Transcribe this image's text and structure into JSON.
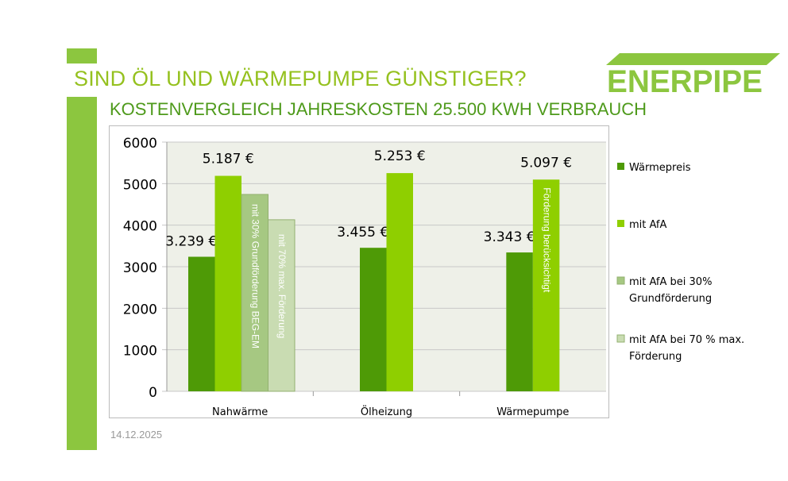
{
  "header": {
    "title": "SIND ÖL UND WÄRMEPUMPE GÜNSTIGER?",
    "subtitle": "KOSTENVERGLEICH JAHRESKOSTEN 25.500 KWH VERBRAUCH",
    "logo_text": "ENERPIPE"
  },
  "footer": {
    "date": "14.12.2025"
  },
  "colors": {
    "accent": "#8cc63f",
    "s1": "#4e9a06",
    "s2": "#8fcf00",
    "s3": "#a6c882",
    "s4": "#c9dcb2",
    "plot_bg": "#eef0e8"
  },
  "chart_data": {
    "type": "bar",
    "categories": [
      "Nahwärme",
      "Ölheizung",
      "Wärmepumpe"
    ],
    "ylim": [
      0,
      6000
    ],
    "yticks": [
      "0",
      "1000",
      "2000",
      "3000",
      "4000",
      "5000",
      "6000"
    ],
    "grid": true,
    "legend_position": "right",
    "series": [
      {
        "name": "Wärmepreis",
        "values": [
          3239,
          3455,
          3343
        ],
        "labels": [
          "3.239 €",
          "3.455 €",
          "3.343 €"
        ]
      },
      {
        "name": "mit AfA",
        "values": [
          5187,
          5253,
          5097
        ],
        "labels": [
          "5.187 €",
          "5.253 €",
          "5.097 €"
        ]
      },
      {
        "name": "mit AfA bei 30% Grundförderung",
        "values": [
          4740,
          null,
          null
        ]
      },
      {
        "name": "mit AfA bei 70 % max. Förderung",
        "values": [
          4130,
          null,
          null
        ]
      }
    ],
    "legend_lines": [
      [
        "Wärmepreis"
      ],
      [
        "mit AfA"
      ],
      [
        "mit AfA bei 30%",
        "Grundförderung"
      ],
      [
        "mit AfA bei 70 % max.",
        "Förderung"
      ]
    ],
    "annotations": [
      "mit 30% Grundförderung BEG-EM",
      "mit 70% max. Förderung",
      "Förderung berücksichtigt"
    ]
  }
}
